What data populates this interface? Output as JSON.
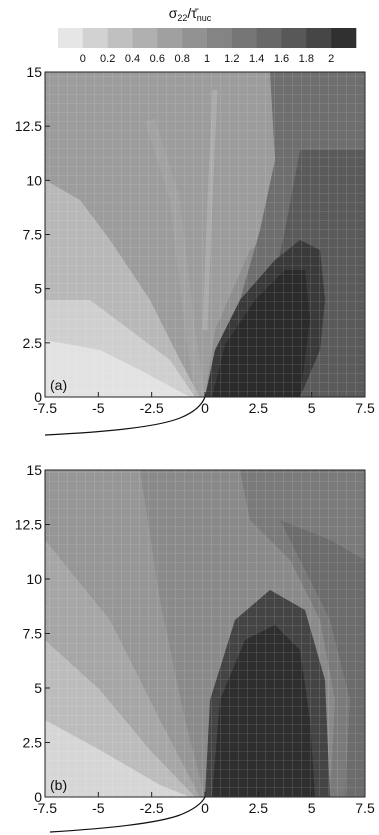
{
  "colorbar": {
    "title_main": "σ",
    "title_main_sub": "22",
    "title_sep": "/",
    "title_denominator": "τ̄",
    "title_denominator_sub": "nuc",
    "ticks": [
      "0",
      "0.2",
      "0.4",
      "0.6",
      "0.8",
      "1",
      "1.2",
      "1.4",
      "1.6",
      "1.8",
      "2"
    ],
    "levels": [
      "#e6e6e6",
      "#d2d2d2",
      "#c0c0c0",
      "#b0b0b0",
      "#a0a0a0",
      "#929292",
      "#848484",
      "#767676",
      "#686868",
      "#585858",
      "#464646",
      "#303030"
    ]
  },
  "chart_data": [
    {
      "type": "heatmap",
      "panel_label": "(a)",
      "xlim": [
        -7.5,
        7.5
      ],
      "ylim": [
        0,
        15
      ],
      "x_ticks": [
        "-7.5",
        "-5",
        "-2.5",
        "0",
        "2.5",
        "5",
        "7.5"
      ],
      "y_ticks": [
        "0",
        "2.5",
        "5",
        "7.5",
        "10",
        "12.5",
        "15"
      ],
      "colorbar_range": [
        0,
        2
      ],
      "description_levels": {
        "left_lower_region": 0.1,
        "upper_region": 0.8,
        "right_upper_region": 1.4,
        "crack_tip_right_lobe": 2.0
      }
    },
    {
      "type": "heatmap",
      "panel_label": "(b)",
      "xlim": [
        -7.5,
        7.5
      ],
      "ylim": [
        0,
        15
      ],
      "x_ticks": [
        "-7.5",
        "-5",
        "-2.5",
        "0",
        "2.5",
        "5",
        "7.5"
      ],
      "y_ticks": [
        "0",
        "2.5",
        "5",
        "7.5",
        "10",
        "12.5",
        "15"
      ],
      "colorbar_range": [
        0,
        2
      ],
      "description_levels": {
        "left_lower_region": 0.2,
        "upper_region": 0.8,
        "right_upper_region": 1.4,
        "crack_tip_right_lobe": 2.0
      }
    }
  ]
}
